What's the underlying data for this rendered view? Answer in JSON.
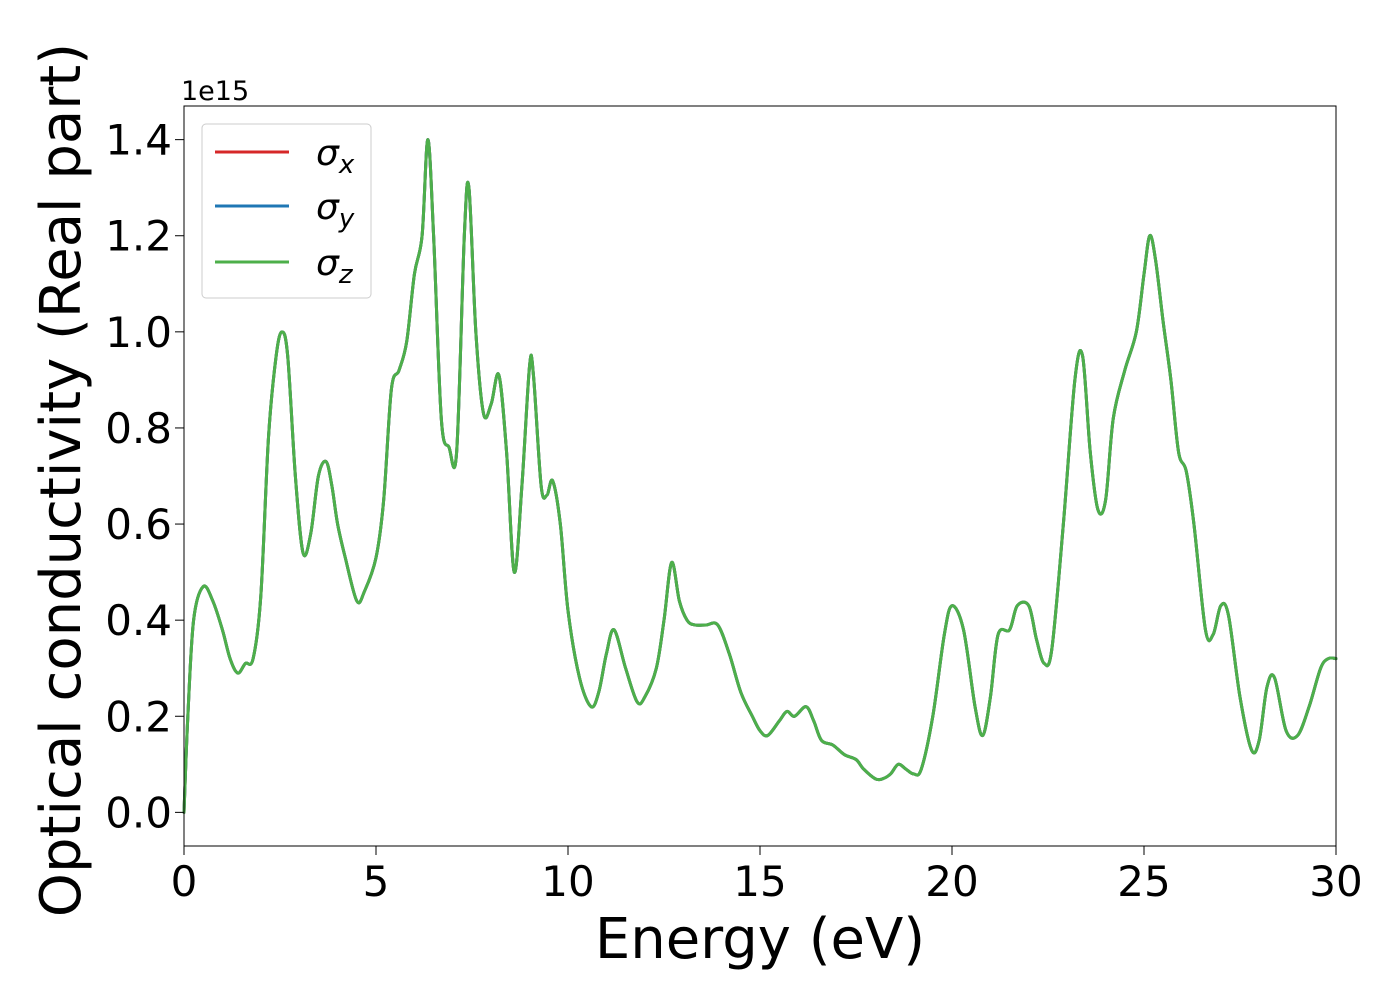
{
  "chart_data": {
    "type": "line",
    "xlabel": "Energy (eV)",
    "ylabel": "Optical conductivity (Real part)",
    "y_offset_label": "1e15",
    "xlim": [
      0,
      30
    ],
    "ylim": [
      -0.07,
      1.47
    ],
    "xticks": [
      0,
      5,
      10,
      15,
      20,
      25,
      30
    ],
    "yticks": [
      0.0,
      0.2,
      0.4,
      0.6,
      0.8,
      1.0,
      1.2,
      1.4
    ],
    "xtick_labels": [
      "0",
      "5",
      "10",
      "15",
      "20",
      "25",
      "30"
    ],
    "ytick_labels": [
      "0.0",
      "0.2",
      "0.4",
      "0.6",
      "0.8",
      "1.0",
      "1.2",
      "1.4"
    ],
    "grid": false,
    "legend": {
      "position": "top-left"
    },
    "colors": {
      "sigma_x": "#d62728",
      "sigma_y": "#1f77b4",
      "sigma_z": "#4daf4a"
    },
    "x": [
      0,
      0.1,
      0.25,
      0.5,
      0.75,
      1.0,
      1.2,
      1.4,
      1.6,
      1.8,
      2.0,
      2.2,
      2.4,
      2.55,
      2.7,
      2.9,
      3.1,
      3.3,
      3.5,
      3.7,
      3.85,
      4.0,
      4.2,
      4.5,
      4.7,
      5.0,
      5.2,
      5.4,
      5.6,
      5.8,
      6.0,
      6.2,
      6.35,
      6.5,
      6.7,
      6.9,
      7.1,
      7.3,
      7.42,
      7.6,
      7.8,
      8.0,
      8.2,
      8.4,
      8.6,
      8.8,
      9.0,
      9.1,
      9.3,
      9.45,
      9.6,
      9.8,
      10.0,
      10.3,
      10.6,
      10.8,
      11.0,
      11.2,
      11.5,
      11.8,
      12.0,
      12.3,
      12.5,
      12.7,
      12.9,
      13.1,
      13.3,
      13.6,
      13.9,
      14.2,
      14.5,
      14.8,
      15.0,
      15.2,
      15.5,
      15.7,
      15.9,
      16.2,
      16.4,
      16.6,
      16.9,
      17.2,
      17.5,
      17.7,
      18.0,
      18.2,
      18.4,
      18.6,
      18.8,
      19.0,
      19.2,
      19.5,
      19.8,
      20.0,
      20.3,
      20.6,
      20.8,
      21.0,
      21.2,
      21.5,
      21.7,
      22.0,
      22.2,
      22.4,
      22.6,
      22.9,
      23.2,
      23.4,
      23.6,
      23.8,
      24.0,
      24.2,
      24.5,
      24.8,
      25.0,
      25.15,
      25.3,
      25.5,
      25.7,
      25.9,
      26.1,
      26.3,
      26.6,
      26.8,
      27.0,
      27.2,
      27.5,
      27.8,
      28.0,
      28.2,
      28.4,
      28.7,
      29.0,
      29.3,
      29.6,
      29.8,
      30.0
    ],
    "series": [
      {
        "name": "σx"
      },
      {
        "name": "σy"
      },
      {
        "name": "σz"
      }
    ],
    "y": [
      0.0,
      0.2,
      0.4,
      0.47,
      0.44,
      0.38,
      0.32,
      0.29,
      0.31,
      0.32,
      0.45,
      0.78,
      0.95,
      1.0,
      0.95,
      0.7,
      0.54,
      0.58,
      0.7,
      0.73,
      0.68,
      0.6,
      0.53,
      0.44,
      0.46,
      0.53,
      0.65,
      0.88,
      0.92,
      0.98,
      1.12,
      1.2,
      1.4,
      1.2,
      0.82,
      0.76,
      0.75,
      1.2,
      1.3,
      1.0,
      0.83,
      0.85,
      0.91,
      0.75,
      0.5,
      0.68,
      0.93,
      0.91,
      0.68,
      0.66,
      0.69,
      0.6,
      0.42,
      0.28,
      0.22,
      0.25,
      0.33,
      0.38,
      0.3,
      0.23,
      0.24,
      0.3,
      0.4,
      0.52,
      0.44,
      0.4,
      0.39,
      0.39,
      0.39,
      0.33,
      0.25,
      0.2,
      0.17,
      0.16,
      0.19,
      0.21,
      0.2,
      0.22,
      0.19,
      0.15,
      0.14,
      0.12,
      0.11,
      0.09,
      0.07,
      0.07,
      0.08,
      0.1,
      0.09,
      0.08,
      0.09,
      0.2,
      0.37,
      0.43,
      0.38,
      0.22,
      0.16,
      0.24,
      0.37,
      0.38,
      0.43,
      0.43,
      0.36,
      0.31,
      0.34,
      0.6,
      0.9,
      0.95,
      0.75,
      0.63,
      0.65,
      0.82,
      0.92,
      1.0,
      1.12,
      1.2,
      1.15,
      1.02,
      0.9,
      0.75,
      0.71,
      0.6,
      0.38,
      0.37,
      0.43,
      0.41,
      0.24,
      0.13,
      0.15,
      0.26,
      0.28,
      0.17,
      0.16,
      0.22,
      0.3,
      0.32,
      0.32
    ]
  }
}
